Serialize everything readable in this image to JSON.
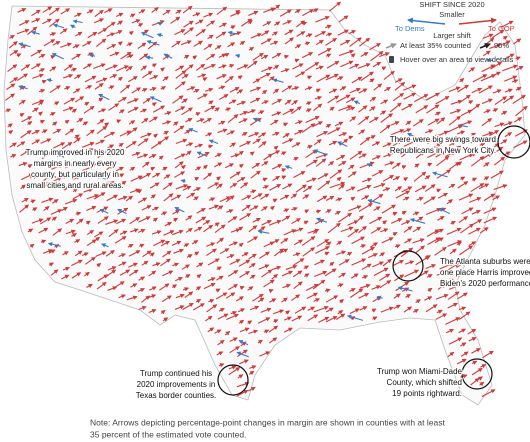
{
  "legend": {
    "title": "SHIFT SINCE 2020",
    "smaller": "Smaller",
    "dems": "To Dems",
    "gop": "To GOP",
    "larger": "Larger shift",
    "min_counted": "At least 35% counted",
    "max_counted": "90%",
    "hover": "Hover over an area to view details"
  },
  "annotations": [
    {
      "lines": [
        "Trump improved in his 2020",
        "margins in nearly every",
        "county, but particularly in",
        "small cities and rural areas."
      ]
    },
    {
      "lines": [
        "There were big swings toward",
        "Republicans in New York City."
      ]
    },
    {
      "lines": [
        "The Atlanta suburbs were",
        "one place Harris improved on",
        "Biden's 2020 performance."
      ]
    },
    {
      "lines": [
        "Trump continued his",
        "2020 improvements in",
        "Texas border counties."
      ]
    },
    {
      "lines": [
        "Trump won Miami-Dade",
        "County, which shifted",
        "19 points rightward."
      ]
    }
  ],
  "note": [
    "Note: Arrows depicting percentage-point changes in margin are shown in counties with at least",
    "35 percent of the estimated vote counted."
  ]
}
